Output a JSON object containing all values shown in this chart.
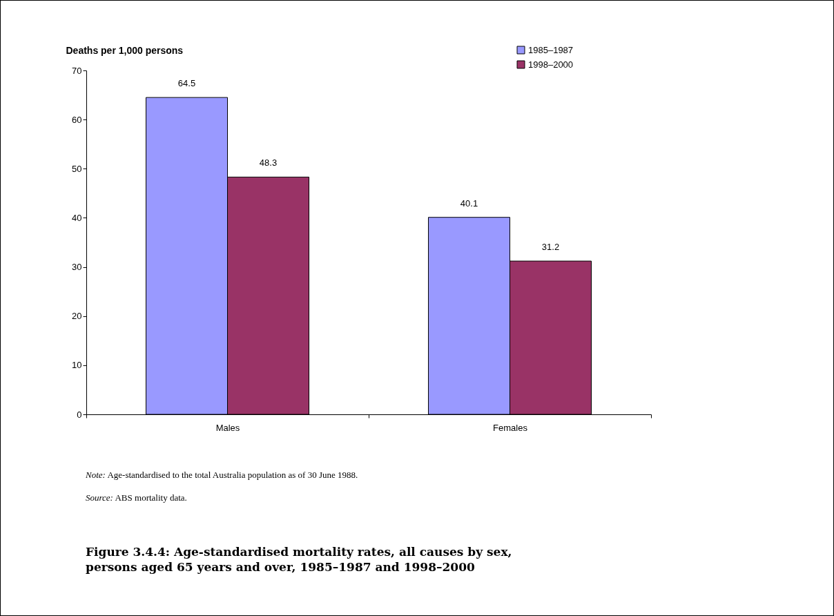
{
  "chart_data": {
    "type": "bar",
    "title": "Figure 3.4.4: Age-standardised mortality rates, all causes by sex, persons aged 65 years and over, 1985–1987 and 1998–2000",
    "ylabel": "Deaths per 1,000 persons",
    "categories": [
      "Males",
      "Females"
    ],
    "series": [
      {
        "name": "1985–1987",
        "color": "#9999ff",
        "values": [
          64.5,
          40.1
        ]
      },
      {
        "name": "1998–2000",
        "color": "#993366",
        "values": [
          48.3,
          31.2
        ]
      }
    ],
    "ylim": [
      0,
      70
    ],
    "yticks": [
      0,
      10,
      20,
      30,
      40,
      50,
      60,
      70
    ],
    "grid": false,
    "legend": "top right",
    "data_labels": true,
    "annotations": [
      "Note: Age-standardised to the total Australia population as of 30 June 1988.",
      "Source: ABS mortality data."
    ]
  }
}
